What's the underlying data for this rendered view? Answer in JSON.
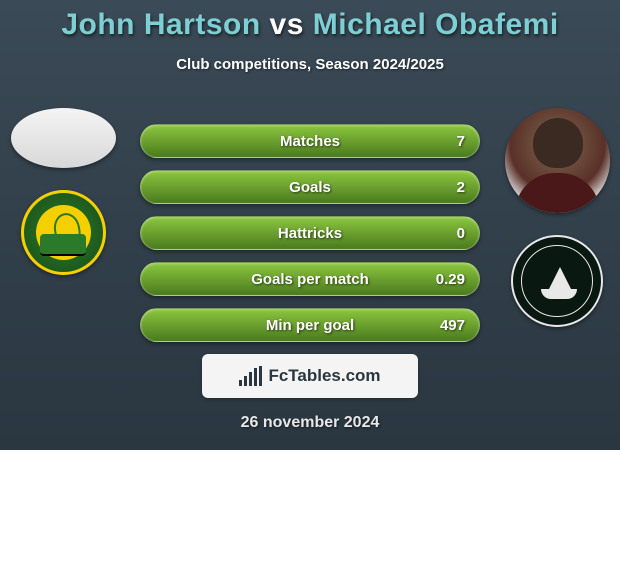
{
  "title": {
    "player1": "John Hartson",
    "vs": "vs",
    "player2": "Michael Obafemi"
  },
  "subtitle": "Club competitions, Season 2024/2025",
  "stats": [
    {
      "label": "Matches",
      "value": "7"
    },
    {
      "label": "Goals",
      "value": "2"
    },
    {
      "label": "Hattricks",
      "value": "0"
    },
    {
      "label": "Goals per match",
      "value": "0.29"
    },
    {
      "label": "Min per goal",
      "value": "497"
    }
  ],
  "brand": "FcTables.com",
  "date": "26 november 2024",
  "colors": {
    "background_top": "#3a4a56",
    "background_bottom": "#2a3640",
    "highlight": "#7ecfd4",
    "pill_top": "#8cc63f",
    "pill_bottom": "#4a7a1f",
    "norwich_green": "#2a7a2a",
    "norwich_yellow": "#f5d000",
    "plymouth_bg": "#0a1812",
    "brand_box": "#f4f4f4"
  },
  "brand_bars_heights": [
    6,
    10,
    14,
    18,
    20
  ]
}
